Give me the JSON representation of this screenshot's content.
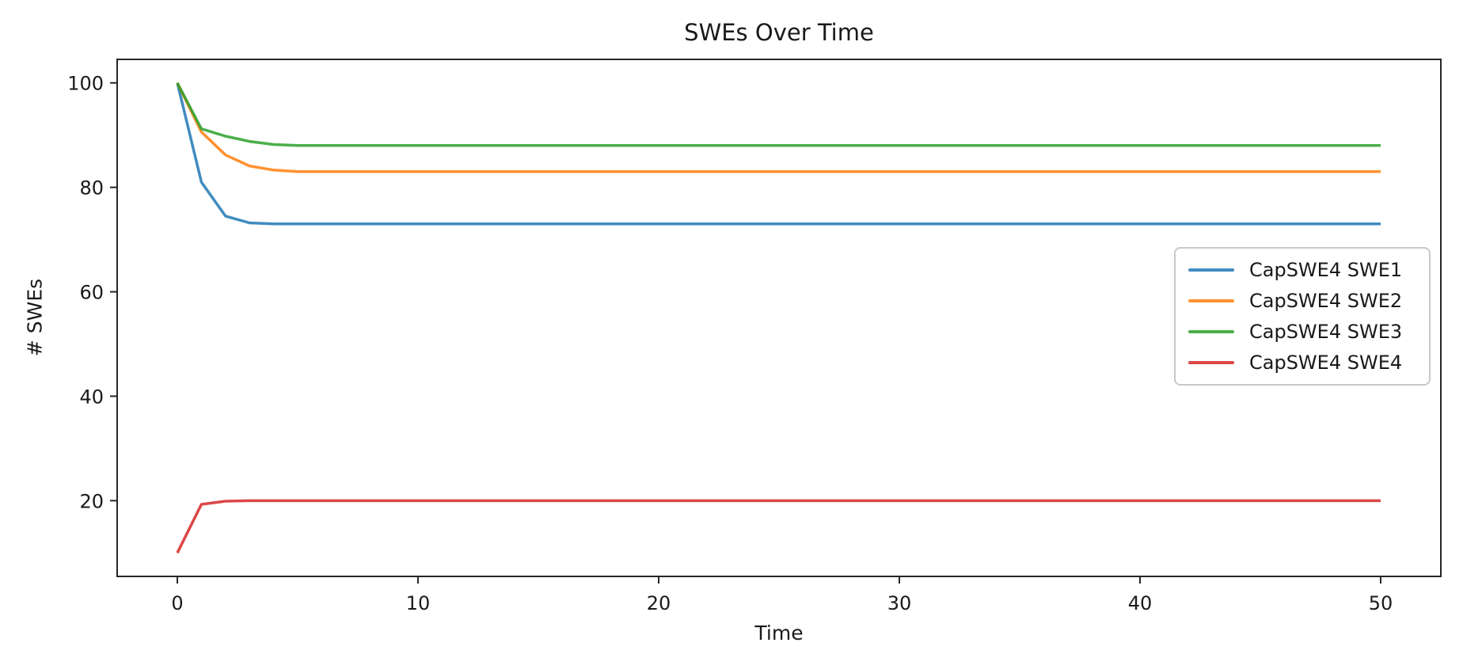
{
  "figure": {
    "background": "#ffffff",
    "spine_color": "#262626"
  },
  "chart_data": {
    "type": "line",
    "title": "SWEs Over Time",
    "xlabel": "Time",
    "ylabel": "# SWEs",
    "xlim": [
      -2.5,
      52.5
    ],
    "ylim": [
      5.5,
      104.5
    ],
    "xticks": [
      0,
      10,
      20,
      30,
      40,
      50
    ],
    "yticks": [
      20,
      40,
      60,
      80,
      100
    ],
    "grid": false,
    "legend_position": "center right",
    "line_width": 3.5,
    "line_opacity": 0.85,
    "series": [
      {
        "name": "CapSWE4 SWE1",
        "color": "#1f77b4",
        "points": [
          [
            0,
            100
          ],
          [
            1,
            81
          ],
          [
            2,
            74.5
          ],
          [
            3,
            73.2
          ],
          [
            4,
            73
          ],
          [
            50,
            73
          ]
        ]
      },
      {
        "name": "CapSWE4 SWE2",
        "color": "#ff7f0e",
        "points": [
          [
            0,
            100
          ],
          [
            1,
            90.6
          ],
          [
            2,
            86.2
          ],
          [
            3,
            84.1
          ],
          [
            4,
            83.3
          ],
          [
            5,
            83
          ],
          [
            50,
            83
          ]
        ]
      },
      {
        "name": "CapSWE4 SWE3",
        "color": "#2ca02c",
        "points": [
          [
            0,
            100
          ],
          [
            1,
            91.2
          ],
          [
            2,
            89.8
          ],
          [
            3,
            88.8
          ],
          [
            4,
            88.2
          ],
          [
            5,
            88
          ],
          [
            50,
            88
          ]
        ]
      },
      {
        "name": "CapSWE4 SWE4",
        "color": "#d62728",
        "points": [
          [
            0,
            10
          ],
          [
            1,
            19.3
          ],
          [
            2,
            19.9
          ],
          [
            3,
            20
          ],
          [
            50,
            20
          ]
        ]
      }
    ]
  }
}
